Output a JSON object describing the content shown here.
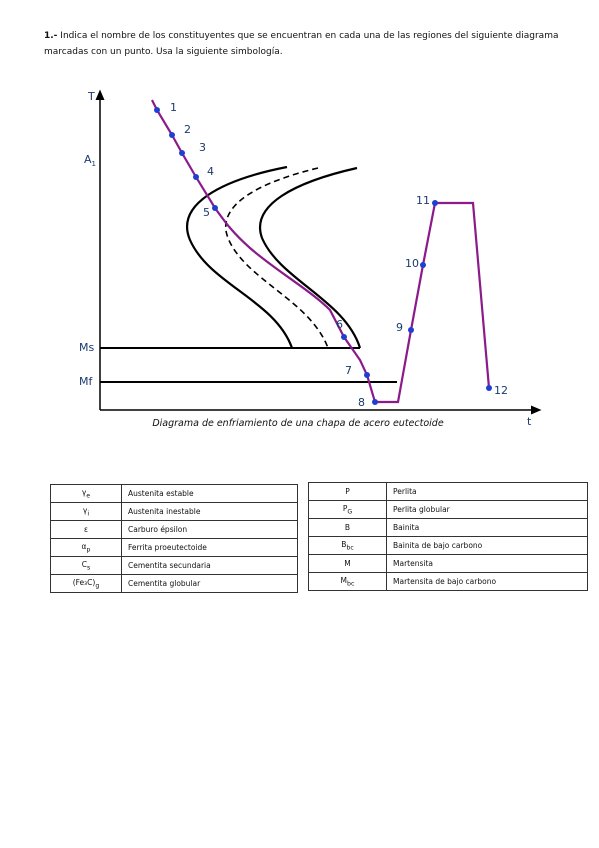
{
  "question": {
    "number": "1.-",
    "text": "Indica el nombre de los constituyentes que se encuentran en cada una de las regiones del siguiente diagrama marcadas con un punto. Usa la siguiente simbología."
  },
  "diagram": {
    "y_axis_label": "T",
    "x_axis_label": "t",
    "a1_label": {
      "base": "A",
      "sub": "1"
    },
    "ms_label": "Ms",
    "mf_label": "Mf",
    "caption": "Diagrama de enfriamiento de una chapa de acero eutectoide",
    "points": [
      "1",
      "2",
      "3",
      "4",
      "5",
      "6",
      "7",
      "8",
      "9",
      "10",
      "11",
      "12"
    ]
  },
  "tables": [
    {
      "rows": [
        [
          {
            "base": "γ",
            "sub": "e"
          },
          "Austenita estable"
        ],
        [
          {
            "base": "γ",
            "sub": "i"
          },
          "Austenita inestable"
        ],
        [
          {
            "base": "ε",
            "sub": ""
          },
          "Carburo épsilon"
        ],
        [
          {
            "base": "α",
            "sub": "p"
          },
          "Ferrita proeutectoide"
        ],
        [
          {
            "base": "C",
            "sub": "s"
          },
          "Cementita secundaria"
        ],
        [
          {
            "base": "(Fe₃C)",
            "sub": "g"
          },
          "Cementita globular"
        ]
      ]
    },
    {
      "rows": [
        [
          {
            "base": "P",
            "sub": ""
          },
          "Perlita"
        ],
        [
          {
            "base": "P",
            "sub": "G"
          },
          "Perlita globular"
        ],
        [
          {
            "base": "B",
            "sub": ""
          },
          "Bainita"
        ],
        [
          {
            "base": "B",
            "sub": "bc"
          },
          "Bainita de bajo carbono"
        ],
        [
          {
            "base": "M",
            "sub": ""
          },
          "Martensita"
        ],
        [
          {
            "base": "M",
            "sub": "bc"
          },
          "Martensita de bajo carbono"
        ]
      ]
    }
  ]
}
